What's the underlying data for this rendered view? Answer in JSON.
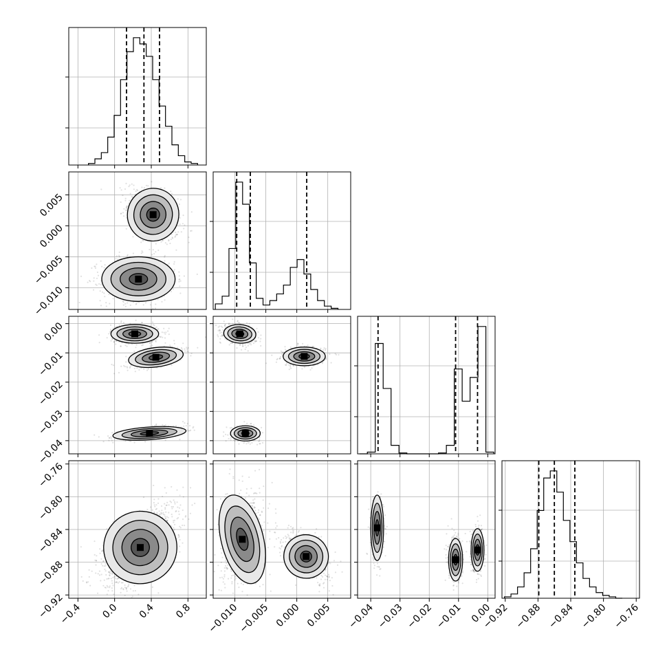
{
  "chart_data": {
    "type": "corner",
    "parameters": 4,
    "grid": true,
    "axes": {
      "p0": {
        "range": [
          -0.5,
          1.0
        ],
        "ticks": [
          -0.4,
          0.0,
          0.4,
          0.8
        ],
        "tick_labels": [
          "−0.4",
          "0.0",
          "0.4",
          "0.8"
        ]
      },
      "p1": {
        "range": [
          -0.0135,
          0.0087
        ],
        "ticks": [
          -0.01,
          -0.005,
          0.0,
          0.005
        ],
        "tick_labels": [
          "−0.010",
          "−0.005",
          "0.000",
          "0.005"
        ]
      },
      "p2": {
        "range": [
          -0.0445,
          0.0025
        ],
        "ticks": [
          -0.04,
          -0.03,
          -0.02,
          -0.01,
          0.0
        ],
        "tick_labels": [
          "−0.04",
          "−0.03",
          "−0.02",
          "−0.01",
          "0.00"
        ],
        "y_tick_labels": [
          "−0.04",
          "−0.03",
          "−0.02",
          "−0.01",
          "0.00"
        ]
      },
      "p3": {
        "range": [
          -0.924,
          -0.756
        ],
        "ticks": [
          -0.92,
          -0.88,
          -0.84,
          -0.8,
          -0.76
        ],
        "tick_labels": [
          "−0.92",
          "−0.88",
          "−0.84",
          "−0.80",
          "−0.76"
        ]
      }
    },
    "histograms": [
      {
        "param": "p0",
        "bin_centers": [
          -0.25,
          -0.18,
          -0.11,
          -0.04,
          0.03,
          0.1,
          0.17,
          0.24,
          0.31,
          0.38,
          0.45,
          0.52,
          0.59,
          0.66,
          0.73,
          0.8,
          0.87
        ],
        "counts": [
          1,
          4,
          8,
          18,
          32,
          55,
          73,
          82,
          78,
          70,
          55,
          38,
          25,
          13,
          6,
          2,
          1
        ],
        "quantiles": [
          0.13,
          0.32,
          0.49
        ]
      },
      {
        "param": "p1",
        "bin_centers": [
          -0.0126,
          -0.0115,
          -0.0104,
          -0.0093,
          -0.0082,
          -0.0071,
          -0.006,
          -0.0049,
          -0.0038,
          -0.0027,
          -0.0016,
          -0.0005,
          0.0006,
          0.0017,
          0.0028,
          0.0039,
          0.005,
          0.0061
        ],
        "counts": [
          5,
          12,
          55,
          115,
          95,
          42,
          10,
          4,
          8,
          14,
          22,
          38,
          45,
          32,
          18,
          8,
          3,
          1
        ],
        "quantiles": [
          -0.0097,
          -0.0075,
          0.0016
        ]
      },
      {
        "param": "p2",
        "bin_centers": [
          -0.0425,
          -0.0398,
          -0.0371,
          -0.0344,
          -0.0317,
          -0.029,
          -0.0263,
          -0.0236,
          -0.0209,
          -0.0182,
          -0.0155,
          -0.0128,
          -0.0101,
          -0.0074,
          -0.0047,
          -0.002,
          0.0007
        ],
        "counts": [
          0,
          2,
          130,
          77,
          10,
          1,
          0,
          0,
          0,
          0,
          1,
          10,
          100,
          62,
          90,
          150,
          2
        ],
        "quantiles": [
          -0.0375,
          -0.011,
          -0.0035
        ]
      },
      {
        "param": "p3",
        "bin_centers": [
          -0.917,
          -0.909,
          -0.901,
          -0.893,
          -0.885,
          -0.877,
          -0.869,
          -0.861,
          -0.853,
          -0.845,
          -0.837,
          -0.829,
          -0.821,
          -0.813,
          -0.805,
          -0.797,
          -0.789,
          -0.781
        ],
        "counts": [
          1,
          3,
          8,
          18,
          35,
          62,
          85,
          90,
          75,
          55,
          40,
          25,
          14,
          8,
          4,
          2,
          1,
          0
        ],
        "quantiles": [
          -0.879,
          -0.86,
          -0.835
        ]
      }
    ],
    "pairs": [
      {
        "x": "p0",
        "y": "p1",
        "blobs": [
          {
            "cx": 0.42,
            "cy": 0.0018,
            "sx": 0.14,
            "sy": 0.0022,
            "rho": -0.35,
            "w": 0.45
          },
          {
            "cx": 0.26,
            "cy": -0.0086,
            "sx": 0.2,
            "sy": 0.0018,
            "rho": 0.0,
            "w": 0.55
          }
        ]
      },
      {
        "x": "p0",
        "y": "p2",
        "blobs": [
          {
            "cx": 0.22,
            "cy": -0.0035,
            "sx": 0.13,
            "sy": 0.0016,
            "rho": 0.0,
            "w": 0.4
          },
          {
            "cx": 0.45,
            "cy": -0.0115,
            "sx": 0.15,
            "sy": 0.0018,
            "rho": 0.55,
            "w": 0.32
          },
          {
            "cx": 0.38,
            "cy": -0.0375,
            "sx": 0.2,
            "sy": 0.0012,
            "rho": 0.6,
            "w": 0.28
          }
        ]
      },
      {
        "x": "p1",
        "y": "p2",
        "blobs": [
          {
            "cx": -0.0092,
            "cy": -0.0035,
            "sx": 0.0013,
            "sy": 0.0016,
            "rho": -0.2,
            "w": 0.4
          },
          {
            "cx": 0.0012,
            "cy": -0.0112,
            "sx": 0.0017,
            "sy": 0.0016,
            "rho": 0.0,
            "w": 0.35
          },
          {
            "cx": -0.0083,
            "cy": -0.0375,
            "sx": 0.0012,
            "sy": 0.0013,
            "rho": 0.0,
            "w": 0.25
          }
        ]
      },
      {
        "x": "p0",
        "y": "p3",
        "blobs": [
          {
            "cx": 0.28,
            "cy": -0.862,
            "sx": 0.2,
            "sy": 0.024,
            "rho": 0.55,
            "w": 1.0
          }
        ]
      },
      {
        "x": "p1",
        "y": "p3",
        "blobs": [
          {
            "cx": -0.0088,
            "cy": -0.852,
            "sx": 0.0017,
            "sy": 0.028,
            "rho": 0.2,
            "w": 0.55
          },
          {
            "cx": 0.0015,
            "cy": -0.873,
            "sx": 0.0018,
            "sy": 0.014,
            "rho": -0.45,
            "w": 0.45
          }
        ]
      },
      {
        "x": "p2",
        "y": "p3",
        "blobs": [
          {
            "cx": -0.0378,
            "cy": -0.838,
            "sx": 0.0011,
            "sy": 0.02,
            "rho": 0.0,
            "w": 0.33
          },
          {
            "cx": -0.011,
            "cy": -0.877,
            "sx": 0.0012,
            "sy": 0.013,
            "rho": 0.0,
            "w": 0.34
          },
          {
            "cx": -0.0035,
            "cy": -0.865,
            "sx": 0.0011,
            "sy": 0.013,
            "rho": 0.0,
            "w": 0.33
          }
        ]
      }
    ]
  }
}
